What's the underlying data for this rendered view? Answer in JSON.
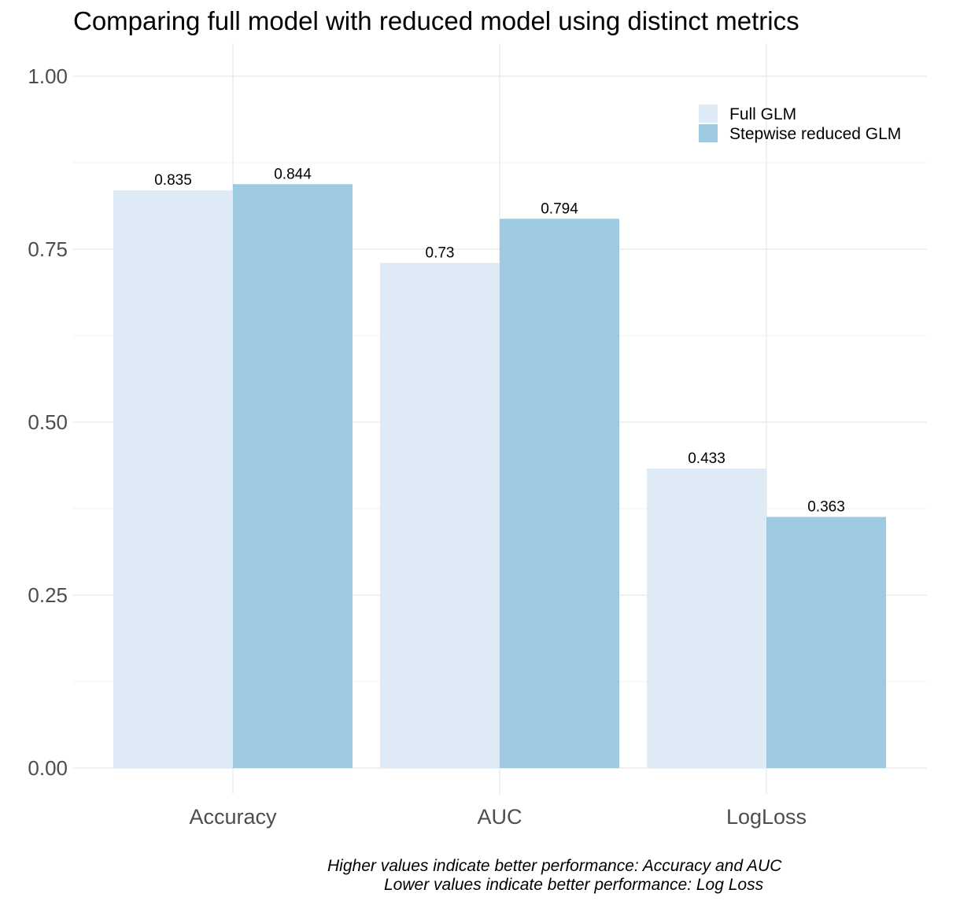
{
  "chart_data": {
    "type": "bar",
    "title": "Comparing full model with reduced model using distinct metrics",
    "xlabel": "",
    "ylabel": "",
    "categories": [
      "Accuracy",
      "AUC",
      "LogLoss"
    ],
    "series": [
      {
        "name": "Full GLM",
        "color": "#deeaf5",
        "values": [
          0.835,
          0.73,
          0.433
        ],
        "labels": [
          "0.835",
          "0.73",
          "0.433"
        ]
      },
      {
        "name": "Stepwise reduced GLM",
        "color": "#9ecae1",
        "values": [
          0.844,
          0.794,
          0.363
        ],
        "labels": [
          "0.844",
          "0.794",
          "0.363"
        ]
      }
    ],
    "ylim": [
      0,
      1.0
    ],
    "yticks": [
      0.0,
      0.25,
      0.5,
      0.75,
      1.0
    ],
    "ytick_labels": [
      "0.00",
      "0.25",
      "0.50",
      "0.75",
      "1.00"
    ],
    "grid": true,
    "legend_position": "top-right",
    "caption": [
      "Higher values indicate better performance: Accuracy and AUC",
      "Lower values indicate better performance: Log Loss"
    ]
  }
}
